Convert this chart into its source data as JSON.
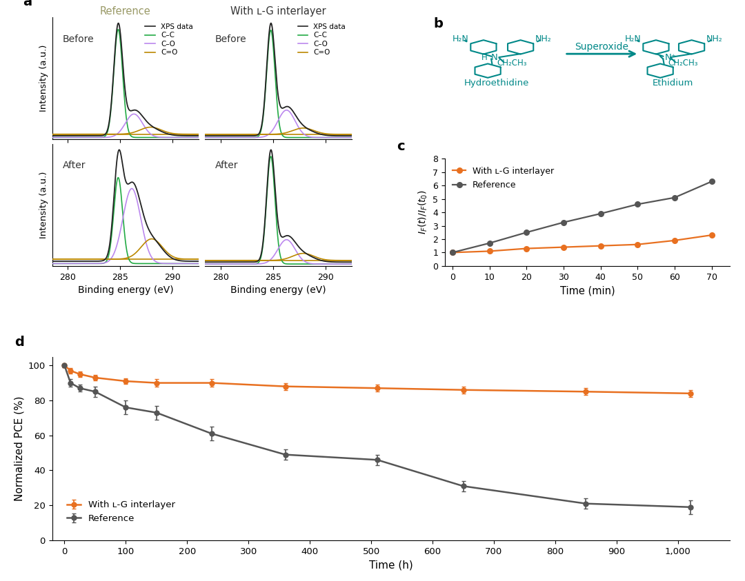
{
  "panel_a": {
    "xps_color": "#222222",
    "cc_color": "#22aa44",
    "co_color": "#bb88ee",
    "coo_color": "#bb8800",
    "x_ticks": [
      280,
      285,
      290
    ],
    "x_label": "Binding energy (eV)",
    "y_label": "Intensity (a.u.)",
    "ref_title": "Reference",
    "lg_title": "With ʟ-G interlayer"
  },
  "panel_c": {
    "time_min": [
      0,
      10,
      20,
      30,
      40,
      50,
      60,
      70
    ],
    "orange_vals": [
      1.0,
      1.1,
      1.3,
      1.4,
      1.5,
      1.6,
      1.9,
      2.3
    ],
    "gray_vals": [
      1.0,
      1.7,
      2.5,
      3.25,
      3.9,
      4.6,
      5.1,
      6.3
    ],
    "orange_color": "#e87020",
    "gray_color": "#555555",
    "ylabel": "$\\mathit{I}_F(t)/\\mathit{I}_F(t_0)$",
    "xlabel": "Time (min)",
    "ylim": [
      0,
      8
    ],
    "yticks": [
      0,
      1,
      2,
      3,
      4,
      5,
      6,
      7,
      8
    ],
    "xticks": [
      0,
      10,
      20,
      30,
      40,
      50,
      60,
      70
    ],
    "legend_lg": "With ʟ-G interlayer",
    "legend_ref": "Reference"
  },
  "panel_d": {
    "time_h": [
      0,
      10,
      25,
      50,
      100,
      150,
      240,
      360,
      510,
      650,
      850,
      1020
    ],
    "orange_vals": [
      100,
      97,
      95,
      93,
      91,
      90,
      90,
      88,
      87,
      86,
      85,
      84
    ],
    "orange_err": [
      1,
      1.5,
      1.5,
      1.5,
      1.5,
      2,
      2,
      2,
      2,
      2,
      2,
      2
    ],
    "gray_vals": [
      100,
      90,
      87,
      85,
      76,
      73,
      61,
      49,
      46,
      31,
      21,
      19
    ],
    "gray_err": [
      1,
      2,
      2,
      3,
      4,
      4,
      4,
      3,
      3,
      3,
      3,
      4
    ],
    "orange_color": "#e87020",
    "gray_color": "#555555",
    "ylabel": "Normalized PCE (%)",
    "xlabel": "Time (h)",
    "ylim": [
      0,
      105
    ],
    "yticks": [
      0,
      20,
      40,
      60,
      80,
      100
    ],
    "xticks": [
      0,
      100,
      200,
      300,
      400,
      500,
      600,
      700,
      800,
      900,
      1000
    ],
    "xtick_labels": [
      "0",
      "100",
      "200",
      "300",
      "400",
      "500",
      "600",
      "700",
      "800",
      "900",
      "1,000"
    ],
    "legend_lg": "With ʟ-G interlayer",
    "legend_ref": "Reference"
  },
  "panel_b": {
    "teal_color": "#008888"
  },
  "bg_color": "#ffffff"
}
